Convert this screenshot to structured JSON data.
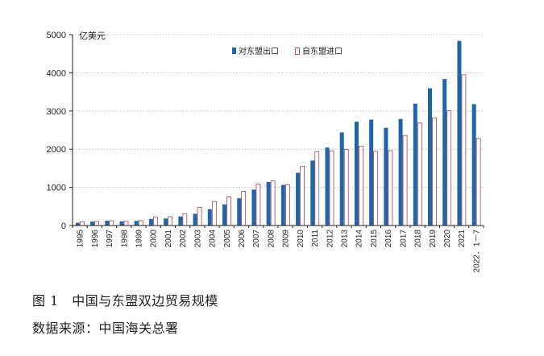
{
  "caption": {
    "figure_title": "图 1　中国与东盟双边贸易规模",
    "source": "数据来源：中国海关总署"
  },
  "chart_data": {
    "type": "bar",
    "unit_label": "亿美元",
    "ylim": [
      0,
      5000
    ],
    "yticks": [
      0,
      1000,
      2000,
      3000,
      4000,
      5000
    ],
    "grid": true,
    "legend_position": "top-right",
    "categories": [
      "1995",
      "1996",
      "1997",
      "1998",
      "1999",
      "2000",
      "2001",
      "2002",
      "2003",
      "2004",
      "2005",
      "2006",
      "2007",
      "2008",
      "2009",
      "2010",
      "2011",
      "2012",
      "2013",
      "2014",
      "2015",
      "2016",
      "2017",
      "2018",
      "2019",
      "2020",
      "2021",
      "2022．1－7"
    ],
    "series": [
      {
        "name": "对东盟出口",
        "color": "#1f65a8",
        "values": [
          73,
          103,
          127,
          110,
          122,
          173,
          184,
          236,
          309,
          429,
          554,
          713,
          942,
          1141,
          1063,
          1382,
          1701,
          2043,
          2440,
          2720,
          2774,
          2559,
          2791,
          3192,
          3594,
          3837,
          4836,
          3180
        ]
      },
      {
        "name": "自东盟进口",
        "color": "#ffffff",
        "stroke": "#9a2a3a",
        "values": [
          99,
          107,
          125,
          109,
          128,
          222,
          233,
          312,
          473,
          630,
          750,
          895,
          1084,
          1170,
          1066,
          1546,
          1928,
          1958,
          1995,
          2083,
          1943,
          1962,
          2360,
          2686,
          2821,
          3007,
          3947,
          2280
        ]
      }
    ]
  }
}
